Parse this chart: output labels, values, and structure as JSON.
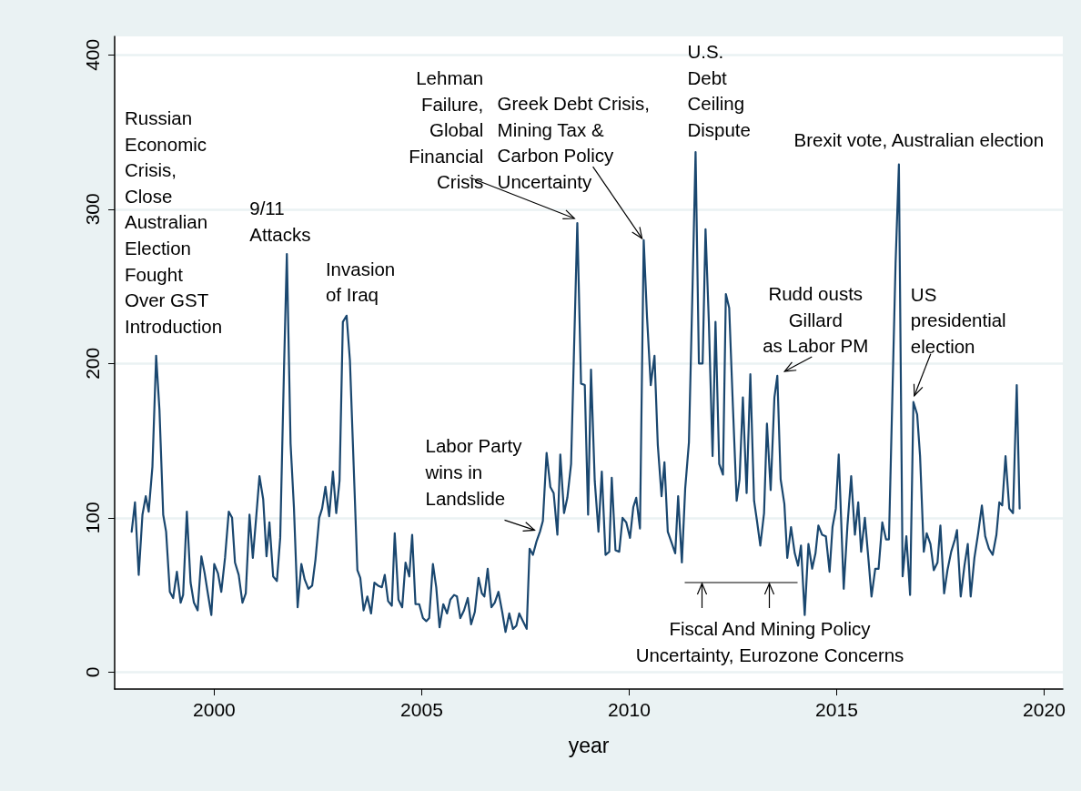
{
  "chart_data": {
    "type": "line",
    "xlabel": "year",
    "color": "#1a476f",
    "marker": "none",
    "line_style": "solid",
    "grid": "y",
    "xlim": [
      1997.6,
      2020.45
    ],
    "xticks": [
      2000,
      2005,
      2010,
      2015,
      2020
    ],
    "ylim": [
      -11,
      412
    ],
    "yticks": [
      0,
      100,
      200,
      300,
      400
    ],
    "x": [
      1998.01,
      1998.09,
      1998.18,
      1998.27,
      1998.35,
      1998.42,
      1998.51,
      1998.6,
      1998.68,
      1998.77,
      1998.84,
      1998.93,
      1999.01,
      1999.1,
      1999.19,
      1999.25,
      1999.34,
      1999.43,
      1999.51,
      1999.6,
      1999.69,
      1999.77,
      1999.84,
      1999.93,
      2000.0,
      2000.09,
      2000.17,
      2000.26,
      2000.35,
      2000.43,
      2000.5,
      2000.59,
      2000.68,
      2000.76,
      2000.85,
      2000.93,
      2001.01,
      2001.09,
      2001.18,
      2001.26,
      2001.33,
      2001.42,
      2001.51,
      2001.59,
      2001.68,
      2001.75,
      2001.84,
      2001.92,
      2002.01,
      2002.1,
      2002.18,
      2002.27,
      2002.36,
      2002.44,
      2002.53,
      2002.6,
      2002.68,
      2002.77,
      2002.86,
      2002.94,
      2003.02,
      2003.1,
      2003.19,
      2003.27,
      2003.36,
      2003.45,
      2003.52,
      2003.6,
      2003.69,
      2003.78,
      2003.86,
      2003.95,
      2004.04,
      2004.11,
      2004.19,
      2004.28,
      2004.35,
      2004.44,
      2004.53,
      2004.61,
      2004.7,
      2004.77,
      2004.85,
      2004.94,
      2005.03,
      2005.11,
      2005.18,
      2005.27,
      2005.35,
      2005.43,
      2005.52,
      2005.61,
      2005.69,
      2005.78,
      2005.85,
      2005.93,
      2006.02,
      2006.11,
      2006.19,
      2006.28,
      2006.37,
      2006.45,
      2006.51,
      2006.59,
      2006.68,
      2006.76,
      2006.85,
      2006.94,
      2007.02,
      2007.11,
      2007.2,
      2007.28,
      2007.35,
      2007.44,
      2007.53,
      2007.6,
      2007.68,
      2007.77,
      2007.85,
      2007.92,
      2008.01,
      2008.1,
      2008.18,
      2008.27,
      2008.34,
      2008.43,
      2008.51,
      2008.6,
      2008.67,
      2008.75,
      2008.84,
      2008.93,
      2009.01,
      2009.08,
      2009.17,
      2009.26,
      2009.34,
      2009.43,
      2009.52,
      2009.58,
      2009.67,
      2009.76,
      2009.84,
      2009.93,
      2010.02,
      2010.1,
      2010.17,
      2010.26,
      2010.35,
      2010.43,
      2010.52,
      2010.61,
      2010.69,
      2010.78,
      2010.85,
      2010.93,
      2011.02,
      2011.11,
      2011.18,
      2011.27,
      2011.35,
      2011.44,
      2011.53,
      2011.6,
      2011.68,
      2011.77,
      2011.84,
      2011.92,
      2012.01,
      2012.08,
      2012.17,
      2012.26,
      2012.33,
      2012.41,
      2012.5,
      2012.59,
      2012.66,
      2012.74,
      2012.83,
      2012.92,
      2013.01,
      2013.08,
      2013.16,
      2013.25,
      2013.32,
      2013.41,
      2013.5,
      2013.57,
      2013.65,
      2013.74,
      2013.81,
      2013.9,
      2013.99,
      2014.07,
      2014.14,
      2014.23,
      2014.32,
      2014.41,
      2014.49,
      2014.56,
      2014.65,
      2014.74,
      2014.83,
      2014.9,
      2014.98,
      2015.05,
      2015.17,
      2015.26,
      2015.35,
      2015.44,
      2015.52,
      2015.59,
      2015.68,
      2015.77,
      2015.84,
      2015.93,
      2016.01,
      2016.1,
      2016.19,
      2016.26,
      2016.35,
      2016.42,
      2016.5,
      2016.59,
      2016.68,
      2016.77,
      2016.85,
      2016.94,
      2017.01,
      2017.1,
      2017.17,
      2017.26,
      2017.34,
      2017.43,
      2017.5,
      2017.59,
      2017.67,
      2017.76,
      2017.85,
      2017.9,
      2017.99,
      2018.08,
      2018.16,
      2018.23,
      2018.32,
      2018.41,
      2018.5,
      2018.58,
      2018.67,
      2018.76,
      2018.85,
      2018.92,
      2018.99,
      2019.07,
      2019.16,
      2019.25,
      2019.34,
      2019.41
    ],
    "values": [
      91,
      110,
      63,
      102,
      114,
      104,
      133,
      205,
      170,
      102,
      91,
      52,
      48,
      65,
      45,
      50,
      104,
      58,
      45,
      40,
      75,
      64,
      52,
      37,
      70,
      64,
      52,
      74,
      104,
      100,
      71,
      63,
      45,
      51,
      102,
      74,
      100,
      127,
      112,
      75,
      97,
      62,
      59,
      87,
      195,
      271,
      148,
      107,
      42,
      70,
      60,
      54,
      56,
      73,
      100,
      106,
      120,
      101,
      130,
      103,
      124,
      227,
      231,
      202,
      134,
      66,
      61,
      40,
      49,
      38,
      58,
      56,
      55,
      63,
      46,
      43,
      90,
      47,
      42,
      71,
      62,
      89,
      44,
      44,
      35,
      33,
      35,
      70,
      55,
      29,
      44,
      38,
      47,
      50,
      49,
      35,
      40,
      48,
      31,
      39,
      61,
      51,
      49,
      67,
      42,
      45,
      52,
      39,
      26,
      38,
      28,
      30,
      38,
      33,
      28,
      80,
      76,
      85,
      91,
      98,
      142,
      120,
      116,
      89,
      141,
      103,
      113,
      135,
      208,
      291,
      187,
      186,
      102,
      196,
      124,
      91,
      130,
      76,
      78,
      126,
      79,
      78,
      100,
      97,
      87,
      107,
      113,
      93,
      280,
      230,
      186,
      205,
      147,
      114,
      136,
      91,
      84,
      77,
      114,
      71,
      119,
      149,
      253,
      337,
      200,
      200,
      287,
      227,
      140,
      227,
      135,
      128,
      245,
      236,
      172,
      111,
      125,
      178,
      116,
      193,
      111,
      98,
      82,
      103,
      161,
      118,
      178,
      192,
      125,
      109,
      74,
      94,
      77,
      69,
      82,
      37,
      83,
      67,
      77,
      95,
      89,
      88,
      65,
      94,
      106,
      141,
      54,
      95,
      127,
      89,
      110,
      78,
      100,
      72,
      49,
      67,
      67,
      97,
      86,
      86,
      187,
      265,
      329,
      62,
      88,
      50,
      175,
      167,
      140,
      78,
      90,
      83,
      66,
      71,
      95,
      51,
      66,
      78,
      86,
      92,
      49,
      69,
      83,
      49,
      74,
      90,
      108,
      88,
      80,
      76,
      89,
      110,
      108,
      140,
      106,
      103,
      186,
      106
    ],
    "annotations": [
      "Russian\nEconomic\nCrisis,\nClose\nAustralian\nElection\nFought\nOver GST\nIntroduction",
      {
        "text": "9/11\nAttacks",
        "x": 2001.75,
        "y": 271
      },
      {
        "text": "Invasion\nof Iraq",
        "x": 2003.19,
        "y": 231
      },
      {
        "text": "Lehman\nFailure,\nGlobal\nFinancial\nCrisis",
        "x": 2008.68,
        "y": 294
      },
      {
        "text": "Greek Debt Crisis,\nMining Tax &\nCarbon Policy\nUncertainty",
        "x": 2010.31,
        "y": 281
      },
      {
        "text": "U.S.\nDebt\nCeiling\nDispute",
        "x": 2011.6,
        "y": 337
      },
      {
        "text": "Labor Party\nwins in\nLandslide",
        "x": 2007.72,
        "y": 92
      },
      {
        "text": "Rudd ousts\nGillard\nas Labor PM",
        "x": 2013.57,
        "y": 192
      },
      {
        "text": "Brexit vote, Australian election",
        "x": 2016.5,
        "y": 329
      },
      {
        "text": "US\npresidential\nelection",
        "x": 2016.85,
        "y": 175
      },
      "Fiscal And Mining Policy\nUncertainty, Eurozone Concerns"
    ]
  }
}
